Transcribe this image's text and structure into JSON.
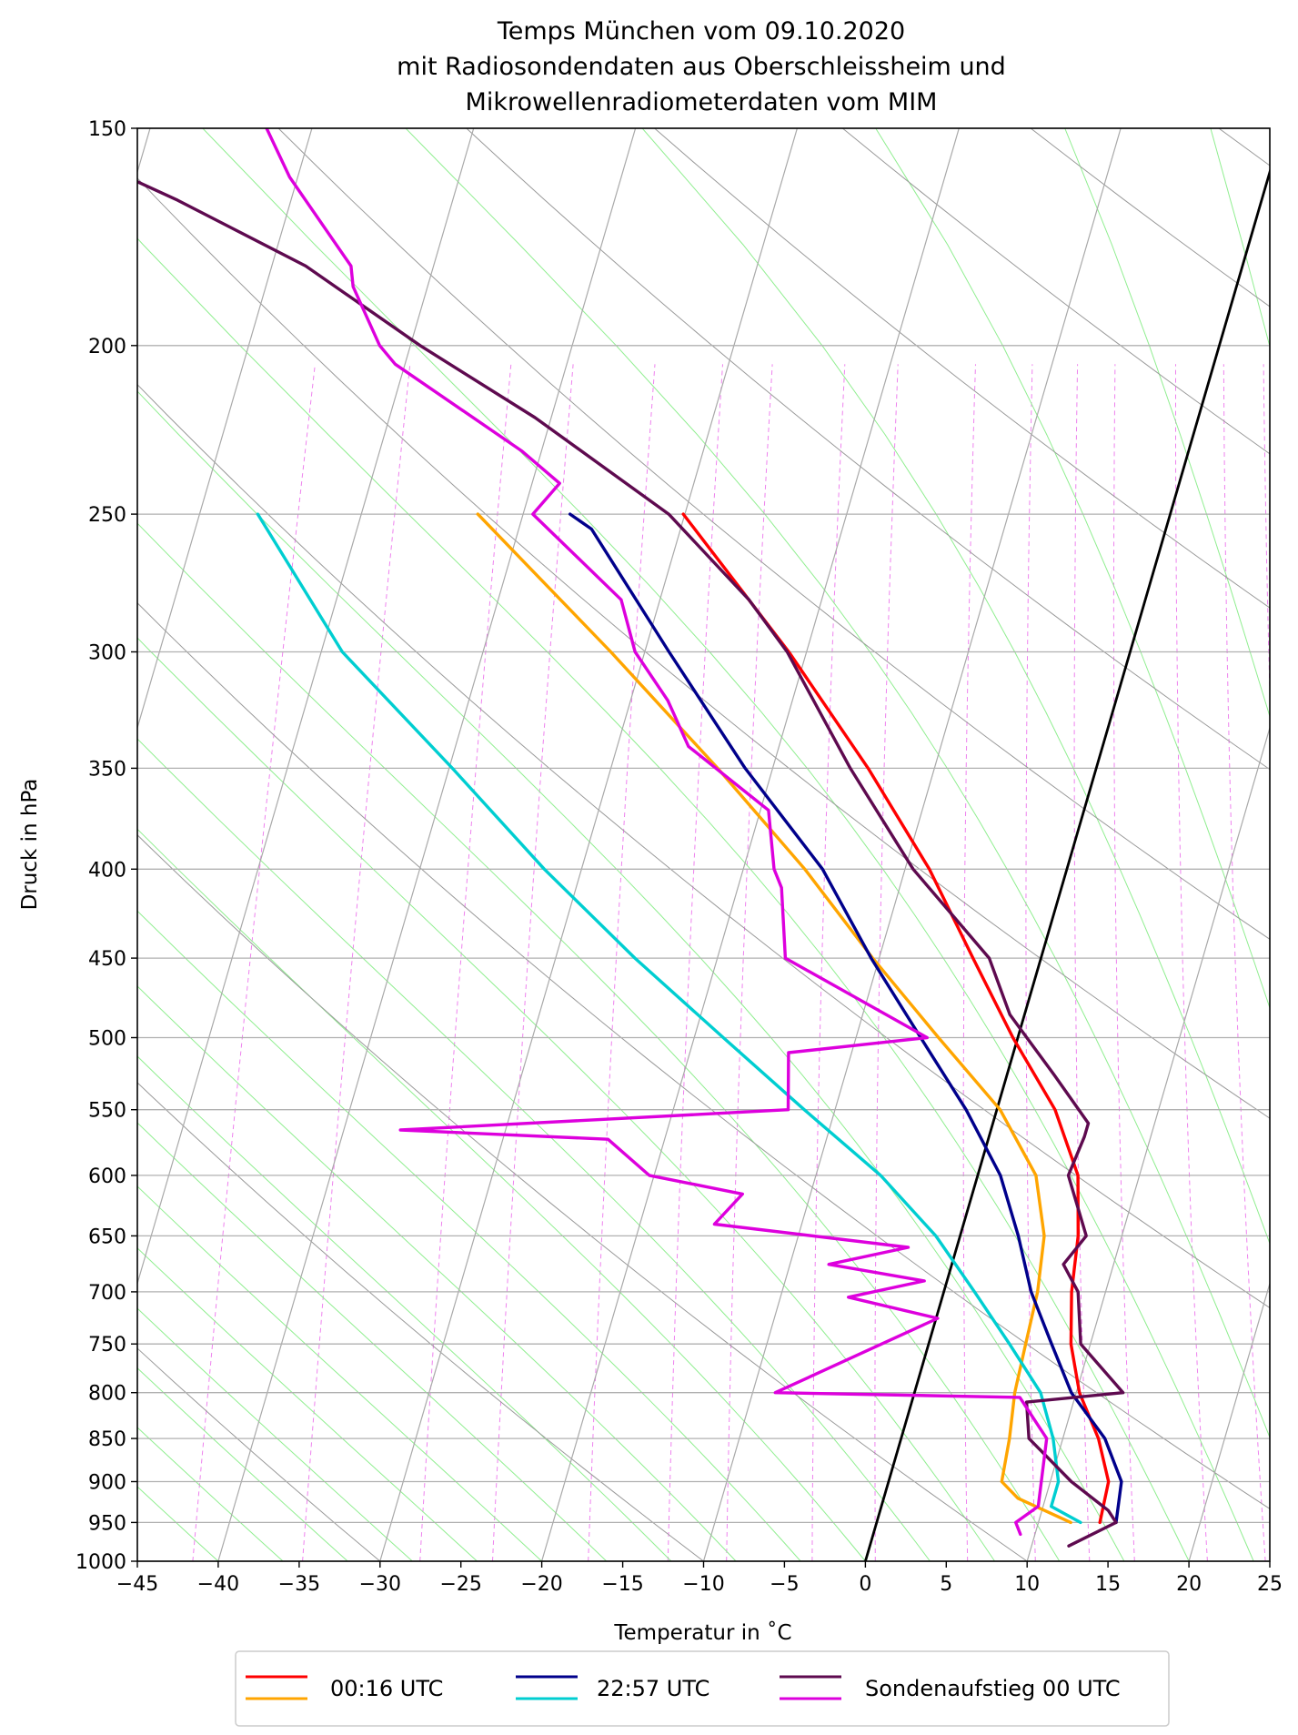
{
  "chart_data": {
    "type": "line",
    "subtype": "skew-T log-p diagram",
    "title": [
      "Temps München vom 09.10.2020",
      "mit Radiosondendaten aus Oberschleissheim und",
      "Mikrowellenradiometerdaten vom MIM"
    ],
    "xlabel": "Temperatur in $^\\circ$C",
    "xlabel_display": "Temperatur in ˚C",
    "ylabel": "Druck in hPa",
    "xlim": [
      -45,
      25
    ],
    "ylim": [
      1000,
      150
    ],
    "xticks": [
      -45,
      -40,
      -35,
      -30,
      -25,
      -20,
      -15,
      -10,
      -5,
      0,
      5,
      10,
      15,
      20,
      25
    ],
    "xtick_labels": [
      "−45",
      "−40",
      "−35",
      "−30",
      "−25",
      "−20",
      "−15",
      "−10",
      "−5",
      "0",
      "5",
      "10",
      "15",
      "20",
      "25"
    ],
    "yticks": [
      150,
      200,
      250,
      300,
      350,
      400,
      450,
      500,
      550,
      600,
      650,
      700,
      750,
      800,
      850,
      900,
      950,
      1000
    ],
    "ytick_labels": [
      "150",
      "200",
      "250",
      "300",
      "350",
      "400",
      "450",
      "500",
      "550",
      "600",
      "650",
      "700",
      "750",
      "800",
      "850",
      "900",
      "950",
      "1000"
    ],
    "grid": true,
    "skew_deg_per_log10_p": 31.3,
    "reference_isotherm": {
      "temperature": 0,
      "color": "#000000"
    },
    "background": {
      "isotherms_step": 10,
      "dry_adiabats_color": "#999999",
      "moist_adiabats_color": "#90ee90",
      "mixing_ratio_color": "#ee82ee"
    },
    "series": [
      {
        "name": "00:16 UTC Temperatur",
        "legend_group": "00:16 UTC",
        "color": "#ff0000",
        "points": [
          [
            13.8,
            950
          ],
          [
            13.6,
            900
          ],
          [
            12.2,
            850
          ],
          [
            10.2,
            800
          ],
          [
            8.8,
            750
          ],
          [
            7.9,
            700
          ],
          [
            7.3,
            650
          ],
          [
            6.2,
            600
          ],
          [
            3.6,
            550
          ],
          [
            -0.3,
            500
          ],
          [
            -4.2,
            450
          ],
          [
            -8.5,
            400
          ],
          [
            -14.1,
            350
          ],
          [
            -21.1,
            300
          ],
          [
            -30.1,
            250
          ]
        ]
      },
      {
        "name": "00:16 UTC Taupunkt",
        "legend_group": "00:16 UTC",
        "color": "#ffa500",
        "points": [
          [
            12,
            950
          ],
          [
            8.3,
            920
          ],
          [
            7,
            900
          ],
          [
            6.7,
            850
          ],
          [
            6.2,
            800
          ],
          [
            6,
            750
          ],
          [
            5.8,
            700
          ],
          [
            5.2,
            650
          ],
          [
            3.6,
            600
          ],
          [
            0.2,
            550
          ],
          [
            -4.9,
            500
          ],
          [
            -10.4,
            450
          ],
          [
            -16.2,
            400
          ],
          [
            -23.4,
            350
          ],
          [
            -32.1,
            300
          ],
          [
            -42.8,
            250
          ]
        ]
      },
      {
        "name": "22:57 UTC Temperatur",
        "legend_group": "22:57 UTC",
        "color": "#00008b",
        "points": [
          [
            14.8,
            950
          ],
          [
            14.4,
            900
          ],
          [
            12.6,
            850
          ],
          [
            9.7,
            800
          ],
          [
            7.6,
            750
          ],
          [
            5.4,
            700
          ],
          [
            3.6,
            650
          ],
          [
            1.4,
            600
          ],
          [
            -1.9,
            550
          ],
          [
            -6,
            500
          ],
          [
            -10.5,
            450
          ],
          [
            -15.1,
            400
          ],
          [
            -21.7,
            350
          ],
          [
            -28.5,
            300
          ],
          [
            -35.5,
            255
          ],
          [
            -37.1,
            250
          ]
        ]
      },
      {
        "name": "22:57 UTC Taupunkt",
        "legend_group": "22:57 UTC",
        "color": "#00ced1",
        "points": [
          [
            12.6,
            950
          ],
          [
            10.5,
            930
          ],
          [
            10.5,
            900
          ],
          [
            9.4,
            850
          ],
          [
            7.8,
            800
          ],
          [
            5,
            750
          ],
          [
            1.9,
            700
          ],
          [
            -1.5,
            650
          ],
          [
            -6,
            600
          ],
          [
            -11.9,
            550
          ],
          [
            -18.2,
            500
          ],
          [
            -25.1,
            450
          ],
          [
            -32.3,
            400
          ],
          [
            -39.8,
            350
          ],
          [
            -48.7,
            300
          ],
          [
            -56.4,
            250
          ]
        ]
      },
      {
        "name": "Sondenaufstieg 00 UTC Temperatur",
        "legend_group": "Sondenaufstieg 00 UTC",
        "color": "#5e0a4f",
        "points": [
          [
            12.3,
            980
          ],
          [
            14.8,
            950
          ],
          [
            14.1,
            935
          ],
          [
            11.3,
            900
          ],
          [
            7.9,
            850
          ],
          [
            7.1,
            810
          ],
          [
            12.9,
            800
          ],
          [
            9.4,
            750
          ],
          [
            8.3,
            700
          ],
          [
            6.9,
            675
          ],
          [
            7.8,
            650
          ],
          [
            5.6,
            600
          ],
          [
            5.9,
            570
          ],
          [
            5.9,
            560
          ],
          [
            2.9,
            525
          ],
          [
            -0.9,
            485
          ],
          [
            -3.2,
            450
          ],
          [
            -9.5,
            400
          ],
          [
            -15.2,
            350
          ],
          [
            -21.2,
            300
          ],
          [
            -24.5,
            280
          ],
          [
            -31,
            250
          ],
          [
            -41,
            220
          ],
          [
            -49.4,
            200
          ],
          [
            -57.9,
            180
          ],
          [
            -67,
            165
          ],
          [
            -78,
            150
          ]
        ]
      },
      {
        "name": "Sondenaufstieg 00 UTC Taupunkt",
        "legend_group": "Sondenaufstieg 00 UTC",
        "color": "#dd00dd",
        "points": [
          [
            9.1,
            965
          ],
          [
            8.6,
            950
          ],
          [
            9.7,
            930
          ],
          [
            9,
            850
          ],
          [
            6.6,
            805
          ],
          [
            -8.6,
            800
          ],
          [
            0.1,
            725
          ],
          [
            -5.8,
            705
          ],
          [
            -1.4,
            690
          ],
          [
            -7.6,
            675
          ],
          [
            -3,
            660
          ],
          [
            -15.4,
            640
          ],
          [
            -14.2,
            615
          ],
          [
            -20.3,
            600
          ],
          [
            -23.5,
            572
          ],
          [
            -36.5,
            565
          ],
          [
            -12.9,
            550
          ],
          [
            -13.9,
            510
          ],
          [
            -5.6,
            500
          ],
          [
            -15.8,
            450
          ],
          [
            -17.3,
            410
          ],
          [
            -18.1,
            400
          ],
          [
            -19.5,
            370
          ],
          [
            -25.6,
            340
          ],
          [
            -27.7,
            320
          ],
          [
            -30.6,
            300
          ],
          [
            -32.4,
            280
          ],
          [
            -39.4,
            250
          ],
          [
            -38.3,
            240
          ],
          [
            -41.2,
            230
          ],
          [
            -50.6,
            205
          ],
          [
            -51.9,
            200
          ],
          [
            -54.6,
            185
          ],
          [
            -55.1,
            180
          ],
          [
            -60.5,
            160
          ],
          [
            -62.8,
            150
          ]
        ]
      }
    ],
    "legend": {
      "placement": "bottom-center",
      "entries": [
        {
          "label": "00:16 UTC",
          "colors": [
            "#ff0000",
            "#ffa500"
          ]
        },
        {
          "label": "22:57 UTC",
          "colors": [
            "#00008b",
            "#00ced1"
          ]
        },
        {
          "label": "Sondenaufstieg 00 UTC",
          "colors": [
            "#5e0a4f",
            "#dd00dd"
          ]
        }
      ]
    }
  }
}
